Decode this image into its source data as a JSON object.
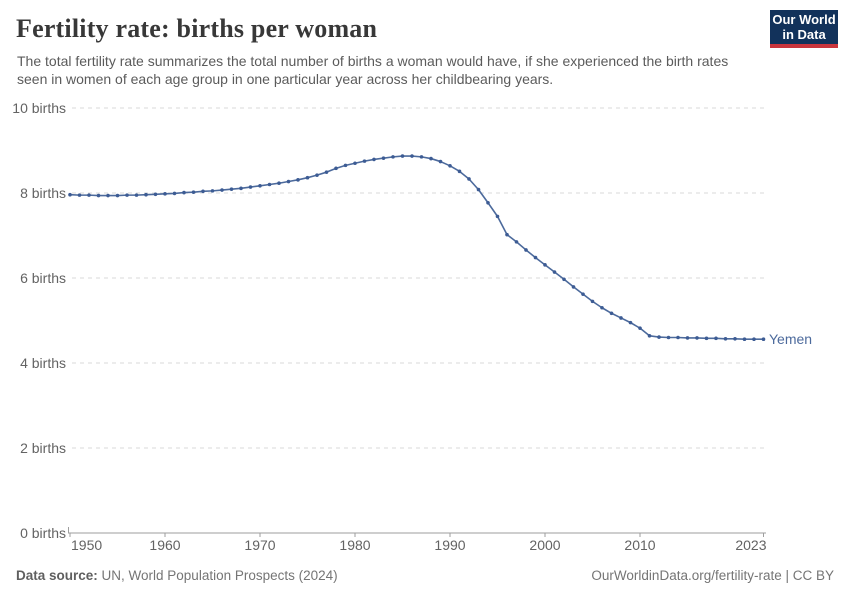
{
  "header": {
    "title": "Fertility rate: births per woman",
    "subtitle": "The total fertility rate summarizes the total number of births a woman would have, if she experienced the birth rates seen in women of each age group in one particular year across her childbearing years.",
    "logo": {
      "line1": "Our World",
      "line2": "in Data",
      "bg_color": "#12325b",
      "stripe_color": "#c9353d"
    }
  },
  "chart_data": {
    "type": "line",
    "title": "Fertility rate: births per woman",
    "xlabel": "",
    "ylabel": "",
    "xlim": [
      1950,
      2023
    ],
    "ylim": [
      0,
      10
    ],
    "grid": "horizontal dashed",
    "legend_position": "end-of-line label",
    "y_ticks": [
      0,
      2,
      4,
      6,
      8,
      10
    ],
    "y_tick_labels": [
      "0 births",
      "2 births",
      "4 births",
      "6 births",
      "8 births",
      "10 births"
    ],
    "x_ticks": [
      1950,
      1960,
      1970,
      1980,
      1990,
      2000,
      2010,
      2023
    ],
    "series": [
      {
        "name": "Yemen",
        "color": "#4C6A9C",
        "dot_color": "#3D5C94",
        "x": [
          1950,
          1951,
          1952,
          1953,
          1954,
          1955,
          1956,
          1957,
          1958,
          1959,
          1960,
          1961,
          1962,
          1963,
          1964,
          1965,
          1966,
          1967,
          1968,
          1969,
          1970,
          1971,
          1972,
          1973,
          1974,
          1975,
          1976,
          1977,
          1978,
          1979,
          1980,
          1981,
          1982,
          1983,
          1984,
          1985,
          1986,
          1987,
          1988,
          1989,
          1990,
          1991,
          1992,
          1993,
          1994,
          1995,
          1996,
          1997,
          1998,
          1999,
          2000,
          2001,
          2002,
          2003,
          2004,
          2005,
          2006,
          2007,
          2008,
          2009,
          2010,
          2011,
          2012,
          2013,
          2014,
          2015,
          2016,
          2017,
          2018,
          2019,
          2020,
          2021,
          2022,
          2023
        ],
        "values": [
          7.96,
          7.95,
          7.95,
          7.94,
          7.94,
          7.94,
          7.95,
          7.95,
          7.96,
          7.97,
          7.98,
          7.99,
          8.01,
          8.02,
          8.04,
          8.05,
          8.07,
          8.09,
          8.11,
          8.14,
          8.17,
          8.2,
          8.23,
          8.27,
          8.31,
          8.36,
          8.42,
          8.49,
          8.58,
          8.65,
          8.7,
          8.75,
          8.79,
          8.82,
          8.85,
          8.87,
          8.87,
          8.85,
          8.81,
          8.74,
          8.64,
          8.51,
          8.33,
          8.08,
          7.77,
          7.45,
          7.02,
          6.85,
          6.66,
          6.48,
          6.31,
          6.14,
          5.97,
          5.79,
          5.62,
          5.45,
          5.3,
          5.17,
          5.06,
          4.95,
          4.82,
          4.64,
          4.61,
          4.6,
          4.6,
          4.59,
          4.59,
          4.58,
          4.58,
          4.57,
          4.57,
          4.56,
          4.56,
          4.56
        ]
      }
    ],
    "axis_color": "#9e9e9e",
    "gridline_color": "#d9d9d9"
  },
  "footer": {
    "source_label": "Data source:",
    "source_text": " UN, World Population Prospects (2024)",
    "credit": "OurWorldinData.org/fertility-rate | CC BY"
  }
}
